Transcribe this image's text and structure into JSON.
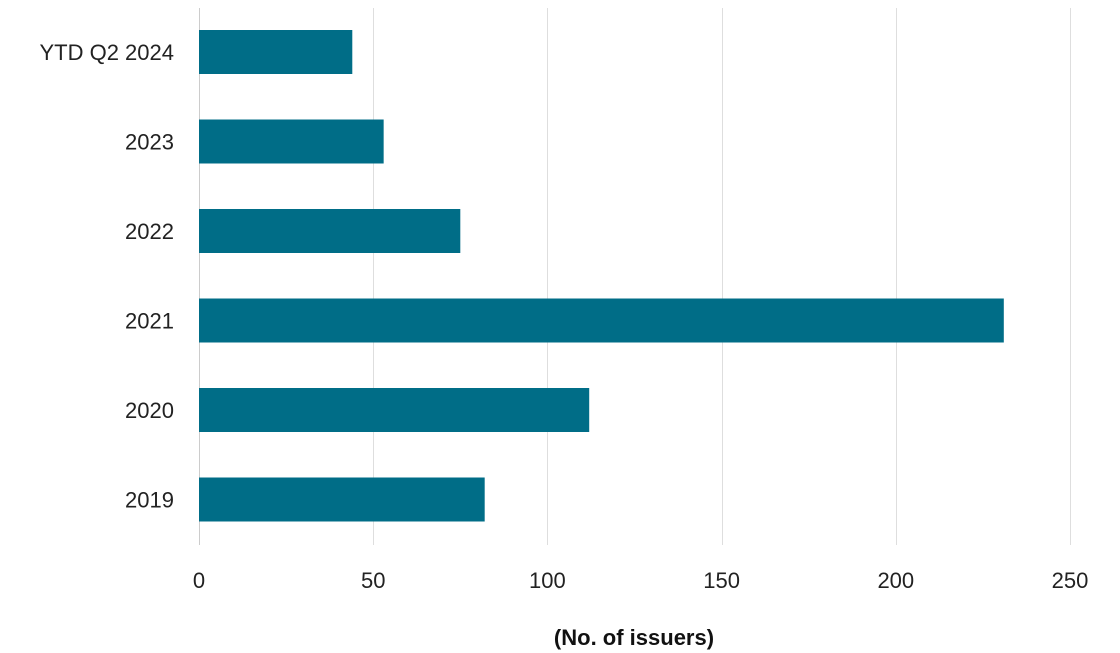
{
  "chart_data": {
    "type": "bar",
    "orientation": "horizontal",
    "categories": [
      "YTD Q2 2024",
      "2023",
      "2022",
      "2021",
      "2020",
      "2019"
    ],
    "values": [
      44,
      53,
      75,
      231,
      112,
      82
    ],
    "xlabel": "(No. of issuers)",
    "ylabel": "",
    "xlim": [
      0,
      250
    ],
    "xticks": [
      "0",
      "50",
      "100",
      "150",
      "200",
      "250"
    ],
    "grid": "vertical",
    "legend": "none",
    "bar_color": "#006d87"
  }
}
